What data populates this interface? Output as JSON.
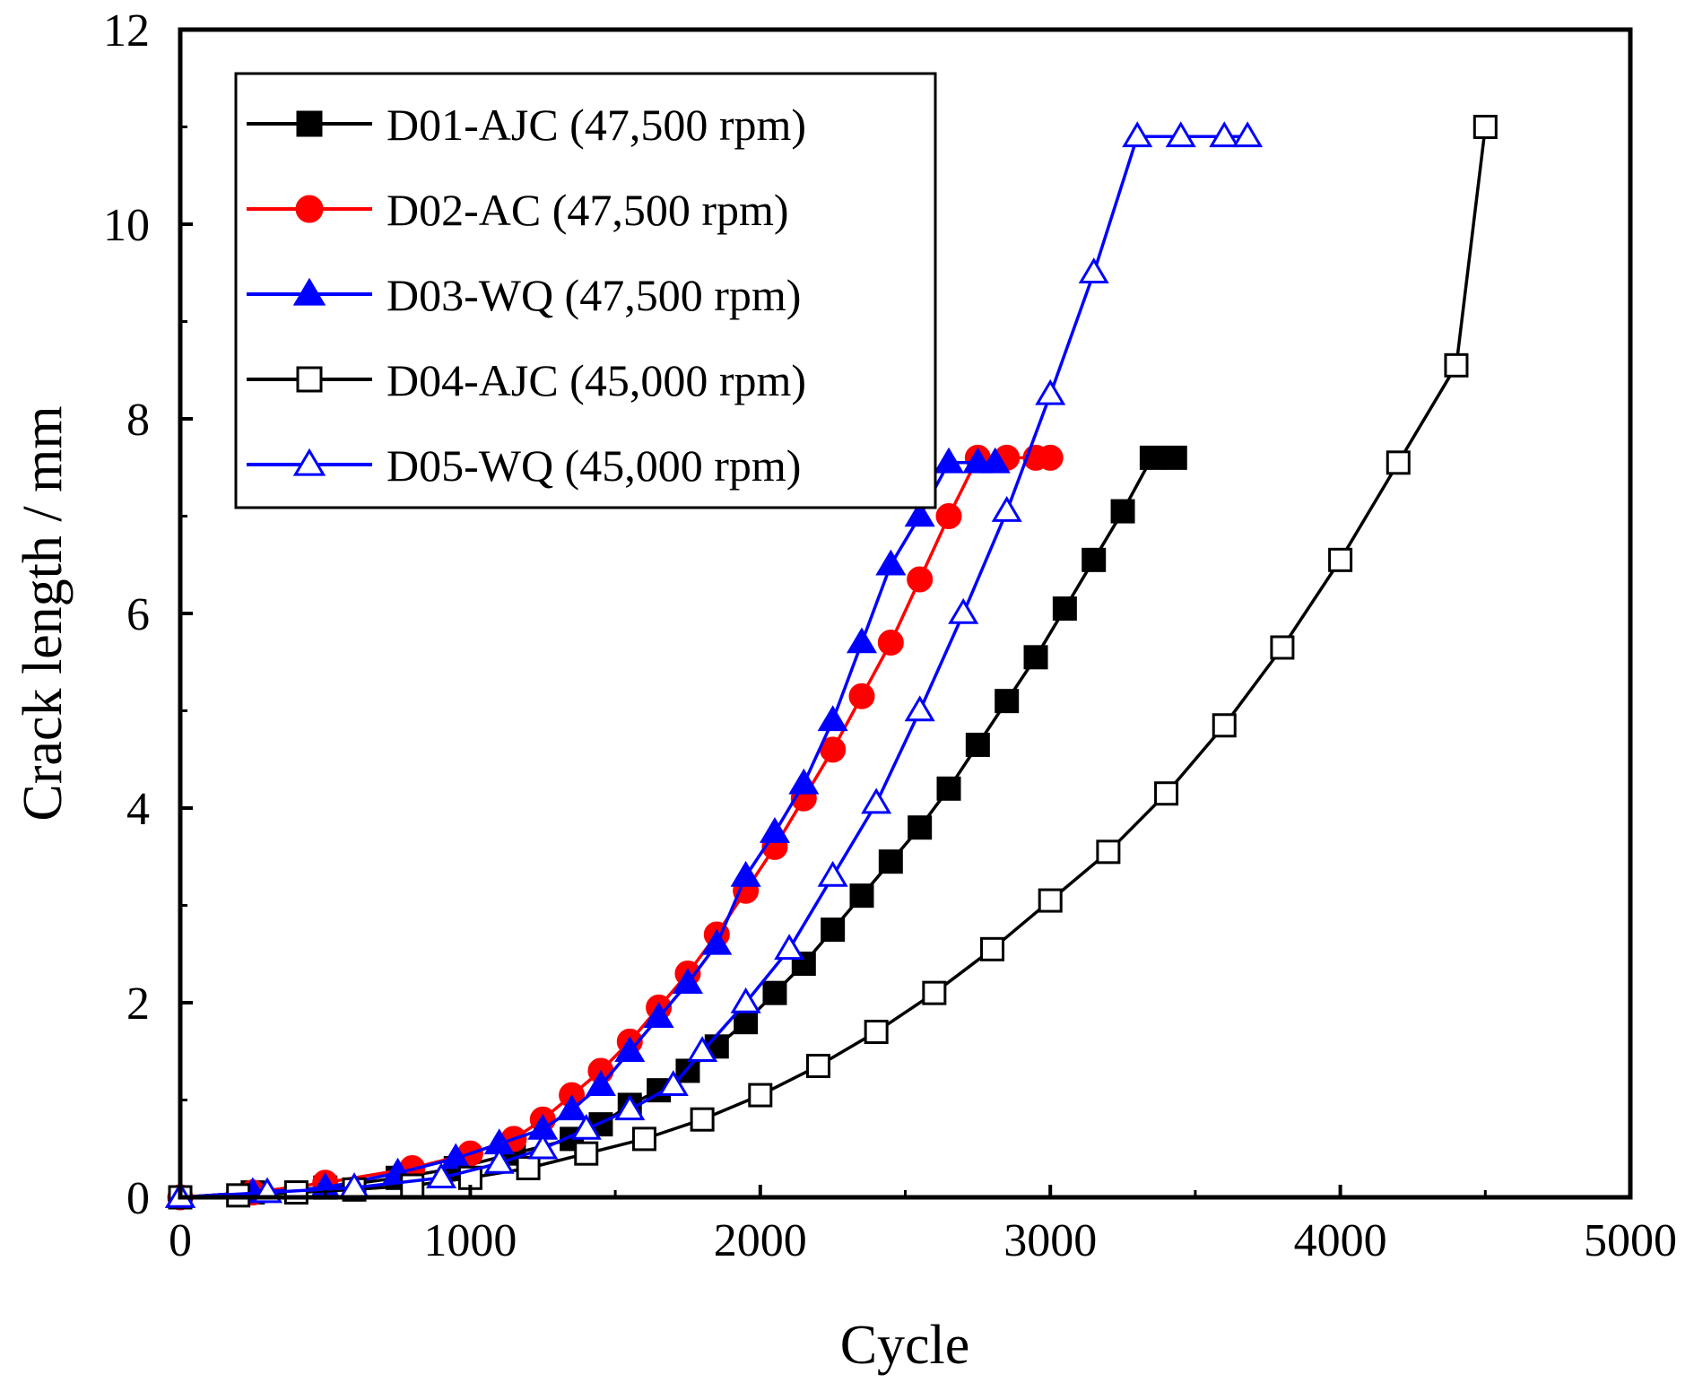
{
  "chart_data": {
    "type": "line",
    "title": "",
    "xlabel": "Cycle",
    "ylabel": "Crack length / mm",
    "xlim": [
      0,
      5000
    ],
    "ylim": [
      0,
      12
    ],
    "xticks": [
      "0",
      "1000",
      "2000",
      "3000",
      "4000",
      "5000"
    ],
    "yticks": [
      "0",
      "2",
      "4",
      "6",
      "8",
      "10",
      "12"
    ],
    "legend_position": "top-left",
    "series": [
      {
        "name": "D01-AJC (47,500 rpm)",
        "color": "#000000",
        "marker": "square-filled",
        "x": [
          0,
          250,
          500,
          750,
          950,
          1150,
          1350,
          1450,
          1550,
          1650,
          1750,
          1850,
          1950,
          2050,
          2150,
          2250,
          2350,
          2450,
          2550,
          2650,
          2750,
          2850,
          2950,
          3050,
          3150,
          3250,
          3350,
          3430
        ],
        "y": [
          0,
          0.05,
          0.1,
          0.2,
          0.3,
          0.45,
          0.6,
          0.75,
          0.95,
          1.1,
          1.3,
          1.55,
          1.8,
          2.1,
          2.4,
          2.75,
          3.1,
          3.45,
          3.8,
          4.2,
          4.65,
          5.1,
          5.55,
          6.05,
          6.55,
          7.05,
          7.6,
          7.6
        ]
      },
      {
        "name": "D02-AC (47,500 rpm)",
        "color": "#ff0000",
        "marker": "circle-filled",
        "x": [
          0,
          250,
          500,
          800,
          1000,
          1150,
          1250,
          1350,
          1450,
          1550,
          1650,
          1750,
          1850,
          1950,
          2050,
          2150,
          2250,
          2350,
          2450,
          2550,
          2650,
          2750,
          2850,
          2950,
          3000
        ],
        "y": [
          0,
          0.05,
          0.15,
          0.3,
          0.45,
          0.6,
          0.8,
          1.05,
          1.3,
          1.6,
          1.95,
          2.3,
          2.7,
          3.15,
          3.6,
          4.1,
          4.6,
          5.15,
          5.7,
          6.35,
          7.0,
          7.6,
          7.6,
          7.6,
          7.6
        ]
      },
      {
        "name": "D03-WQ (47,500 rpm)",
        "color": "#0000ff",
        "marker": "triangle-filled",
        "x": [
          0,
          250,
          500,
          750,
          950,
          1100,
          1250,
          1350,
          1450,
          1550,
          1650,
          1750,
          1850,
          1950,
          2050,
          2150,
          2250,
          2350,
          2450,
          2550,
          2650,
          2750,
          2810
        ],
        "y": [
          0,
          0.05,
          0.1,
          0.25,
          0.4,
          0.55,
          0.7,
          0.9,
          1.15,
          1.5,
          1.85,
          2.2,
          2.6,
          3.3,
          3.75,
          4.25,
          4.9,
          5.7,
          6.5,
          7.0,
          7.55,
          7.55,
          7.55
        ]
      },
      {
        "name": "D04-AJC (45,000 rpm)",
        "color": "#000000",
        "marker": "square-open",
        "x": [
          0,
          200,
          400,
          600,
          800,
          1000,
          1200,
          1400,
          1600,
          1800,
          2000,
          2200,
          2400,
          2600,
          2800,
          3000,
          3200,
          3400,
          3600,
          3800,
          4000,
          4200,
          4400,
          4500
        ],
        "y": [
          0,
          0.02,
          0.05,
          0.08,
          0.12,
          0.2,
          0.3,
          0.45,
          0.6,
          0.8,
          1.05,
          1.35,
          1.7,
          2.1,
          2.55,
          3.05,
          3.55,
          4.15,
          4.85,
          5.65,
          6.55,
          7.55,
          8.55,
          11.0
        ]
      },
      {
        "name": "D05-WQ (45,000 rpm)",
        "color": "#0000ff",
        "marker": "triangle-open",
        "x": [
          0,
          300,
          600,
          900,
          1100,
          1250,
          1400,
          1550,
          1700,
          1800,
          1950,
          2100,
          2250,
          2400,
          2550,
          2700,
          2850,
          3000,
          3150,
          3300,
          3450,
          3600,
          3680
        ],
        "y": [
          0,
          0.05,
          0.1,
          0.2,
          0.35,
          0.5,
          0.7,
          0.9,
          1.15,
          1.5,
          2.0,
          2.55,
          3.3,
          4.05,
          5.0,
          6.0,
          7.05,
          8.25,
          9.5,
          10.9,
          10.9,
          10.9,
          10.9
        ]
      }
    ]
  }
}
